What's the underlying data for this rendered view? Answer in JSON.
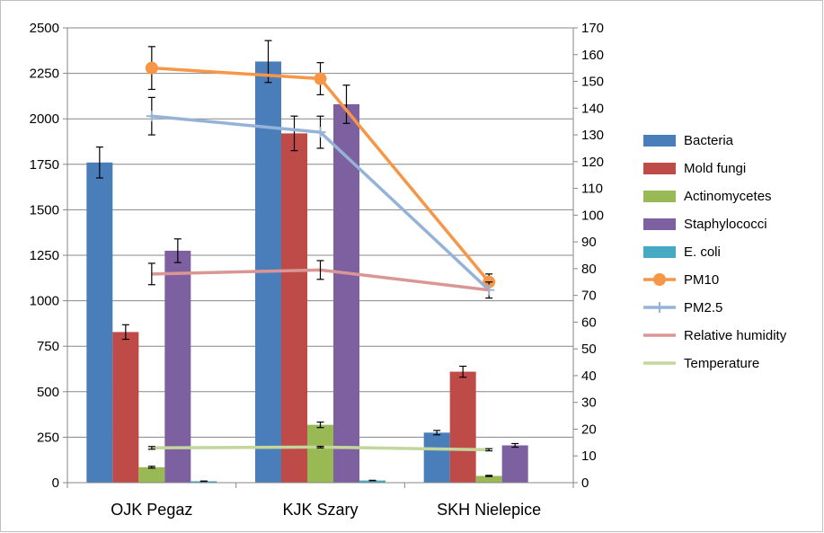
{
  "chart_data": {
    "type": "bar",
    "categories": [
      "OJK Pegaz",
      "KJK Szary",
      "SKH Nielepice"
    ],
    "ylim_left": [
      0,
      2500
    ],
    "yticks_left": [
      0,
      250,
      500,
      750,
      1000,
      1250,
      1500,
      1750,
      2000,
      2250,
      2500
    ],
    "ylim_right": [
      0,
      170
    ],
    "yticks_right": [
      0,
      10,
      20,
      30,
      40,
      50,
      60,
      70,
      80,
      90,
      100,
      110,
      120,
      130,
      140,
      150,
      160,
      170
    ],
    "grid": true,
    "legend_position": "right",
    "bar_series": [
      {
        "name": "Bacteria",
        "color": "#4a7ebb",
        "values": [
          1760,
          2315,
          275
        ],
        "errors": [
          85,
          115,
          12
        ]
      },
      {
        "name": "Mold fungi",
        "color": "#be4b48",
        "values": [
          828,
          1920,
          610
        ],
        "errors": [
          40,
          95,
          30
        ]
      },
      {
        "name": "Actinomycetes",
        "color": "#98b954",
        "values": [
          85,
          318,
          37
        ],
        "errors": [
          5,
          15,
          3
        ]
      },
      {
        "name": "Staphylococci",
        "color": "#7d60a0",
        "values": [
          1275,
          2080,
          205
        ],
        "errors": [
          65,
          105,
          10
        ]
      },
      {
        "name": "E. coli",
        "color": "#46aac5",
        "values": [
          8,
          12,
          2
        ],
        "errors": [
          1,
          1,
          0
        ]
      }
    ],
    "line_series": [
      {
        "name": "PM10",
        "color": "#f79646",
        "marker": "circle",
        "values": [
          155,
          151,
          75
        ],
        "errors": [
          8,
          6,
          3
        ]
      },
      {
        "name": "PM2.5",
        "color": "#95b3d7",
        "marker": "plus",
        "values": [
          137,
          131,
          72
        ],
        "errors": [
          7,
          6,
          3
        ]
      },
      {
        "name": "Relative humidity",
        "color": "#d99694",
        "marker": "none",
        "values": [
          78,
          79.5,
          72
        ],
        "errors": [
          4,
          3.5,
          0
        ]
      },
      {
        "name": "Temperature",
        "color": "#c3d69b",
        "marker": "none",
        "values": [
          13,
          13.3,
          12.3
        ],
        "errors": [
          0.5,
          0.3,
          0.4
        ]
      }
    ]
  }
}
